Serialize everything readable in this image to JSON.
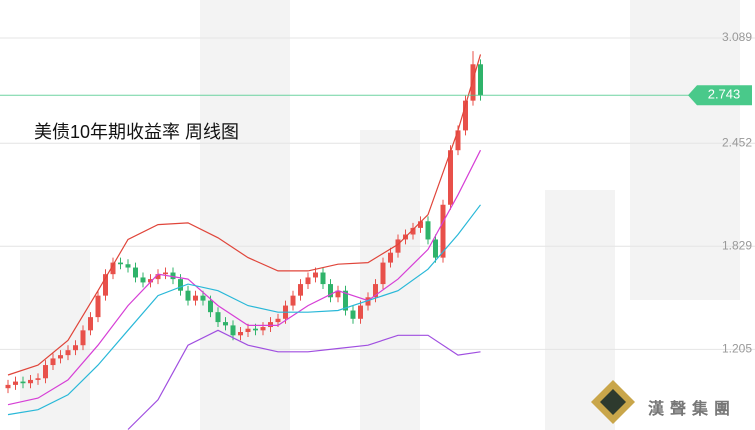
{
  "chart_data": {
    "type": "candlestick",
    "title": "美债10年期收益率 周线图",
    "open": [
      0.97,
      0.99,
      1.01,
      1.0,
      1.02,
      1.03,
      1.11,
      1.15,
      1.17,
      1.2,
      1.23,
      1.32,
      1.4,
      1.53,
      1.66,
      1.73,
      1.72,
      1.7,
      1.64,
      1.61,
      1.63,
      1.66,
      1.67,
      1.63,
      1.56,
      1.5,
      1.53,
      1.5,
      1.43,
      1.37,
      1.35,
      1.29,
      1.31,
      1.33,
      1.32,
      1.34,
      1.37,
      1.39,
      1.47,
      1.53,
      1.6,
      1.64,
      1.67,
      1.6,
      1.52,
      1.56,
      1.44,
      1.39,
      1.47,
      1.52,
      1.6,
      1.73,
      1.79,
      1.87,
      1.9,
      1.94,
      1.98,
      1.87,
      1.76,
      2.08,
      2.41,
      2.53,
      2.71,
      2.93
    ],
    "high": [
      1.02,
      1.04,
      1.04,
      1.05,
      1.06,
      1.14,
      1.18,
      1.2,
      1.23,
      1.26,
      1.35,
      1.43,
      1.56,
      1.69,
      1.76,
      1.76,
      1.75,
      1.73,
      1.67,
      1.66,
      1.69,
      1.7,
      1.7,
      1.66,
      1.59,
      1.56,
      1.56,
      1.53,
      1.46,
      1.4,
      1.38,
      1.34,
      1.36,
      1.36,
      1.37,
      1.4,
      1.42,
      1.5,
      1.56,
      1.63,
      1.67,
      1.7,
      1.7,
      1.63,
      1.59,
      1.59,
      1.47,
      1.5,
      1.55,
      1.63,
      1.76,
      1.82,
      1.9,
      1.93,
      1.97,
      2.01,
      2.01,
      1.9,
      2.11,
      2.44,
      2.56,
      2.74,
      3.01,
      2.96
    ],
    "low": [
      0.94,
      0.96,
      0.97,
      0.97,
      0.99,
      1.0,
      1.08,
      1.12,
      1.14,
      1.17,
      1.2,
      1.29,
      1.37,
      1.5,
      1.63,
      1.69,
      1.67,
      1.61,
      1.58,
      1.58,
      1.6,
      1.63,
      1.6,
      1.53,
      1.47,
      1.47,
      1.47,
      1.4,
      1.34,
      1.32,
      1.26,
      1.26,
      1.28,
      1.29,
      1.29,
      1.31,
      1.34,
      1.36,
      1.44,
      1.5,
      1.57,
      1.61,
      1.57,
      1.49,
      1.49,
      1.41,
      1.36,
      1.36,
      1.44,
      1.49,
      1.57,
      1.7,
      1.76,
      1.84,
      1.87,
      1.91,
      1.84,
      1.73,
      1.73,
      2.05,
      2.38,
      2.5,
      2.68,
      2.71
    ],
    "close": [
      0.99,
      1.01,
      1.0,
      1.02,
      1.03,
      1.11,
      1.15,
      1.17,
      1.2,
      1.23,
      1.32,
      1.4,
      1.53,
      1.66,
      1.73,
      1.72,
      1.7,
      1.64,
      1.61,
      1.63,
      1.66,
      1.67,
      1.63,
      1.56,
      1.5,
      1.53,
      1.5,
      1.43,
      1.37,
      1.35,
      1.29,
      1.31,
      1.33,
      1.32,
      1.34,
      1.37,
      1.39,
      1.47,
      1.53,
      1.6,
      1.64,
      1.67,
      1.6,
      1.52,
      1.56,
      1.44,
      1.39,
      1.47,
      1.52,
      1.6,
      1.73,
      1.79,
      1.87,
      1.9,
      1.94,
      1.98,
      1.87,
      1.76,
      2.08,
      2.41,
      2.53,
      2.71,
      2.93,
      2.743
    ],
    "up_color": "#e8504a",
    "down_color": "#2fb36a",
    "series": [
      {
        "color": "#e0453a",
        "x": [
          0,
          4,
          8,
          12,
          16,
          20,
          24,
          28,
          32,
          36,
          40,
          44,
          48,
          52,
          56,
          60,
          63
        ],
        "values": [
          1.05,
          1.11,
          1.26,
          1.56,
          1.87,
          1.96,
          1.97,
          1.88,
          1.76,
          1.68,
          1.68,
          1.72,
          1.73,
          1.84,
          2.02,
          2.53,
          2.99
        ]
      },
      {
        "color": "#d63fd6",
        "x": [
          0,
          4,
          8,
          12,
          16,
          20,
          24,
          28,
          32,
          36,
          40,
          44,
          48,
          52,
          56,
          60,
          63
        ],
        "values": [
          0.87,
          0.91,
          1.02,
          1.23,
          1.47,
          1.66,
          1.63,
          1.47,
          1.35,
          1.35,
          1.47,
          1.56,
          1.5,
          1.63,
          1.81,
          2.14,
          2.41
        ]
      },
      {
        "color": "#29b8d8",
        "x": [
          0,
          4,
          8,
          12,
          16,
          20,
          24,
          28,
          32,
          36,
          40,
          44,
          48,
          52,
          56,
          60,
          63
        ],
        "values": [
          0.81,
          0.84,
          0.93,
          1.11,
          1.32,
          1.53,
          1.6,
          1.56,
          1.47,
          1.43,
          1.43,
          1.44,
          1.5,
          1.56,
          1.69,
          1.9,
          2.08
        ]
      },
      {
        "color": "#a04fe0",
        "x": [
          0,
          4,
          8,
          12,
          16,
          20,
          24,
          28,
          32,
          36,
          40,
          44,
          48,
          52,
          56,
          60,
          63
        ],
        "values": [
          null,
          null,
          null,
          null,
          0.72,
          0.9,
          1.23,
          1.32,
          1.23,
          1.19,
          1.19,
          1.21,
          1.23,
          1.29,
          1.29,
          1.17,
          1.19
        ]
      }
    ],
    "last_price": 2.743,
    "last_price_color": "#49c98a",
    "ylim": [
      0.717,
      3.319
    ],
    "yticks": [
      1.205,
      1.829,
      2.452,
      3.089
    ],
    "grid": true
  },
  "logo_text": "漢聲集團"
}
